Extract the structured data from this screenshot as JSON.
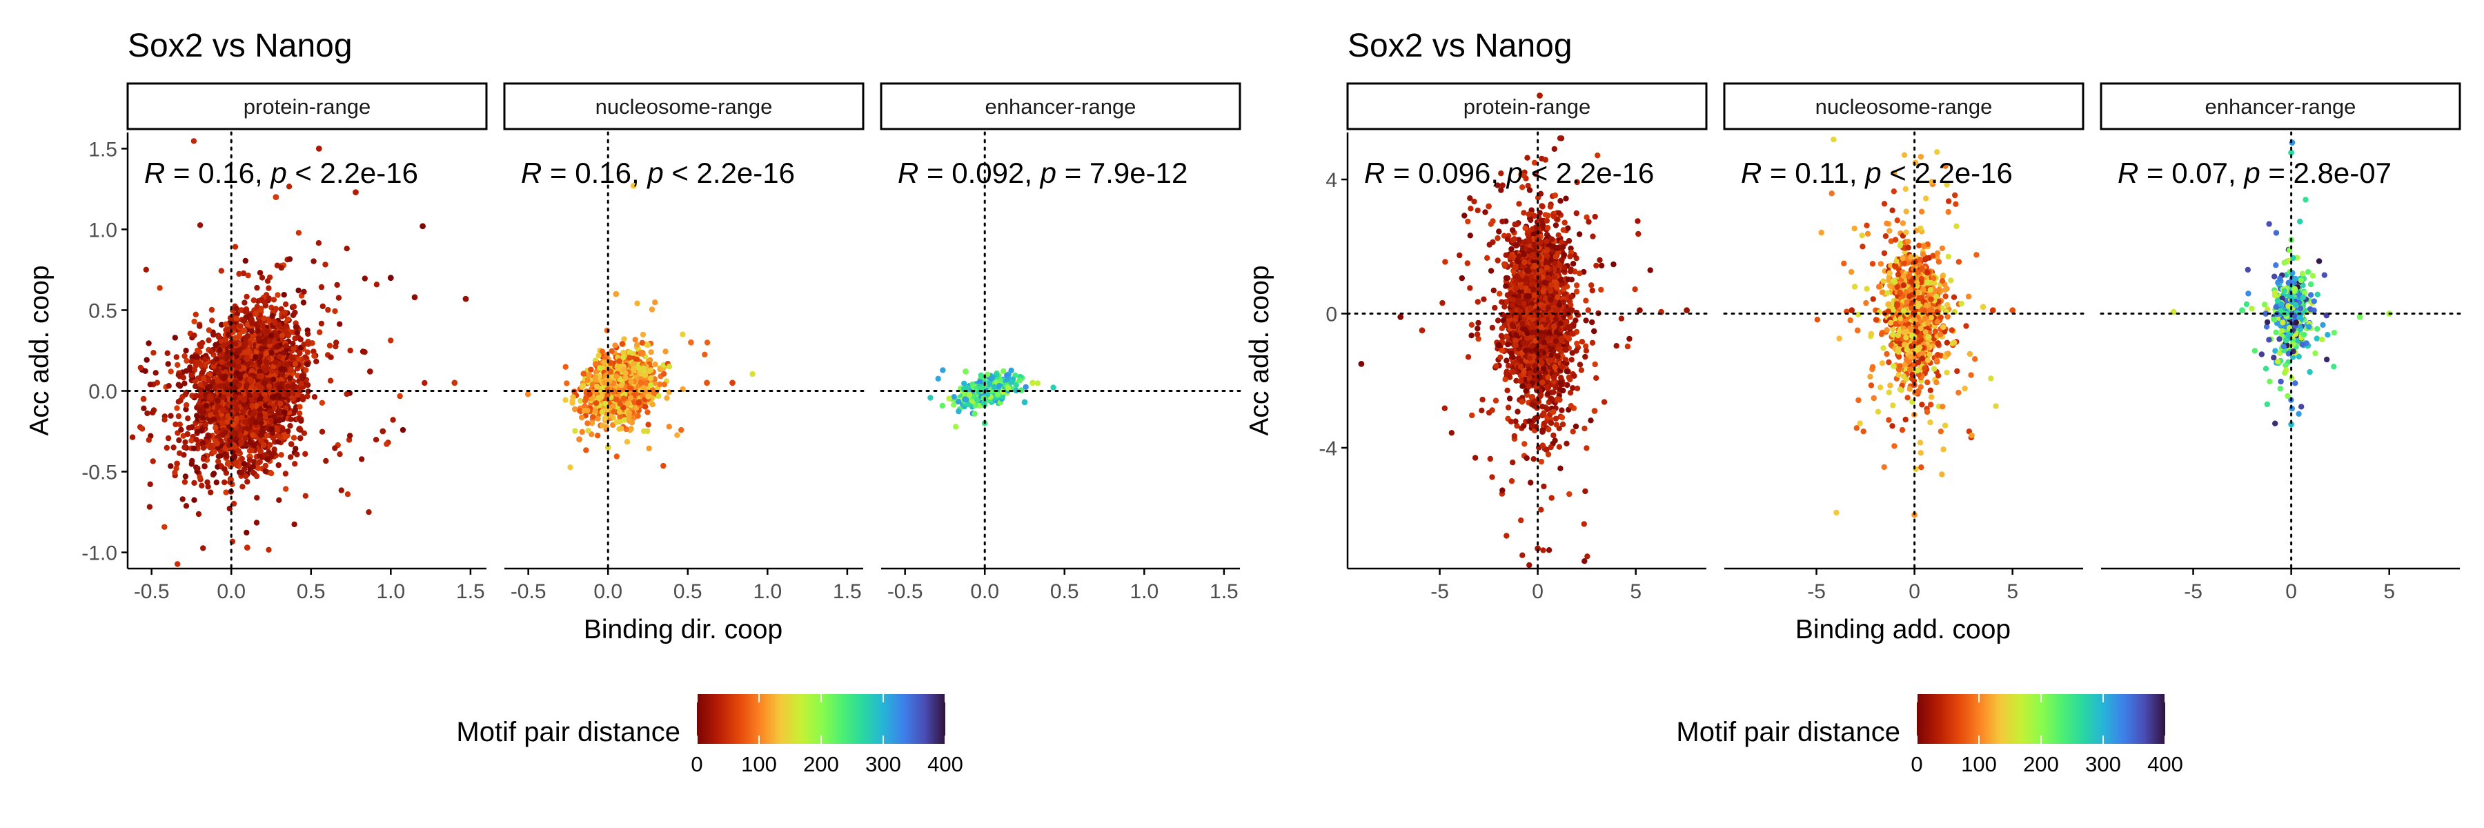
{
  "colors": {
    "scale_stops": [
      "#7a0403",
      "#b51c03",
      "#e4460a",
      "#fb8022",
      "#f6c63a",
      "#c9ef34",
      "#8cfb4b",
      "#4ef071",
      "#2ad8a0",
      "#27b4d8",
      "#3e7fe9",
      "#4a4db5",
      "#30123b"
    ],
    "axis": "#000000",
    "text": "#000000",
    "tick_text": "#4d4d4d"
  },
  "chart_data": [
    {
      "type": "scatter",
      "title": "Sox2 vs Nanog",
      "xlabel": "Binding dir. coop",
      "ylabel": "Acc add. coop",
      "xlim": [
        -0.65,
        1.6
      ],
      "ylim": [
        -1.1,
        1.6
      ],
      "xticks": [
        -0.5,
        0.0,
        0.5,
        1.0,
        1.5
      ],
      "xtick_labels": [
        "-0.5",
        "0.0",
        "0.5",
        "1.0",
        "1.5"
      ],
      "yticks": [
        -1.0,
        -0.5,
        0.0,
        0.5,
        1.0,
        1.5
      ],
      "ytick_labels": [
        "-1.0",
        "-0.5",
        "0.0",
        "0.5",
        "1.0",
        "1.5"
      ],
      "reference_lines": {
        "x": 0,
        "y": 0,
        "style": "dotted"
      },
      "grid": false,
      "legend": {
        "title": "Motif pair distance",
        "position": "bottom",
        "range": [
          0,
          400
        ],
        "tick_labels": [
          "0",
          "100",
          "200",
          "300",
          "400"
        ],
        "tick_values": [
          0,
          100,
          200,
          300,
          400
        ]
      },
      "panels": [
        {
          "strip_label": "protein-range",
          "annotation": {
            "R": "0.16",
            "op": "<",
            "p": "2.2e-16"
          },
          "cloud": {
            "n": 2800,
            "cx": 0.1,
            "cy": 0.02,
            "sx": 0.17,
            "sy": 0.22,
            "tail": 0.06,
            "dist_range": [
              0,
              60
            ]
          },
          "outliers": [
            [
              1.0,
              0.7
            ],
            [
              1.2,
              1.02
            ],
            [
              1.15,
              0.58
            ],
            [
              1.47,
              0.57
            ],
            [
              0.87,
              0.12
            ],
            [
              0.95,
              -0.25
            ],
            [
              0.55,
              1.5
            ],
            [
              0.78,
              1.23
            ],
            [
              -0.34,
              -0.45
            ],
            [
              -0.55,
              -0.05
            ],
            [
              0.1,
              -0.97
            ],
            [
              1.4,
              0.05
            ],
            [
              0.28,
              1.2
            ]
          ]
        },
        {
          "strip_label": "nucleosome-range",
          "annotation": {
            "R": "0.16",
            "op": "<",
            "p": "2.2e-16"
          },
          "cloud": {
            "n": 1100,
            "cx": 0.08,
            "cy": 0.02,
            "sx": 0.11,
            "sy": 0.1,
            "tail": 0.04,
            "dist_range": [
              60,
              160
            ]
          },
          "outliers": [
            [
              0.78,
              0.05
            ],
            [
              0.62,
              0.05
            ],
            [
              0.52,
              0.3
            ],
            [
              -0.18,
              -0.3
            ],
            [
              0.05,
              0.6
            ],
            [
              0.16,
              1.27
            ],
            [
              0.0,
              -0.35
            ]
          ]
        },
        {
          "strip_label": "enhancer-range",
          "annotation": {
            "R": "0.092",
            "op": "=",
            "p": "7.9e-12"
          },
          "cloud": {
            "n": 500,
            "cx": 0.02,
            "cy": 0.0,
            "sx": 0.08,
            "sy": 0.04,
            "tail": 0.03,
            "dist_range": [
              170,
              330
            ]
          },
          "outliers": [
            [
              0.3,
              0.05
            ],
            [
              -0.12,
              0.12
            ],
            [
              0.0,
              -0.2
            ],
            [
              0.25,
              -0.07
            ]
          ]
        }
      ]
    },
    {
      "type": "scatter",
      "title": "Sox2 vs Nanog",
      "xlabel": "Binding add. coop",
      "ylabel": "Acc add. coop",
      "xlim": [
        -9.7,
        8.6
      ],
      "ylim": [
        -7.6,
        5.4
      ],
      "xticks": [
        -5,
        0,
        5
      ],
      "xtick_labels": [
        "-5",
        "0",
        "5"
      ],
      "yticks": [
        -4,
        0,
        4
      ],
      "ytick_labels": [
        "-4",
        "0",
        "4"
      ],
      "reference_lines": {
        "x": 0,
        "y": 0,
        "style": "dotted"
      },
      "grid": false,
      "legend": {
        "title": "Motif pair distance",
        "position": "bottom",
        "range": [
          0,
          400
        ],
        "tick_labels": [
          "0",
          "100",
          "200",
          "300",
          "400"
        ],
        "tick_values": [
          0,
          100,
          200,
          300,
          400
        ]
      },
      "panels": [
        {
          "strip_label": "protein-range",
          "annotation": {
            "R": "0.096",
            "op": "<",
            "p": "2.2e-16"
          },
          "cloud": {
            "n": 2800,
            "cx": 0.0,
            "cy": 0.0,
            "sx": 0.75,
            "sy": 1.2,
            "tail": 0.12,
            "dist_range": [
              0,
              60
            ]
          },
          "outliers": [
            [
              -9.0,
              -1.5
            ],
            [
              -7.0,
              -0.1
            ],
            [
              5.2,
              0.1
            ],
            [
              7.6,
              0.1
            ],
            [
              0.0,
              -7.0
            ],
            [
              0.1,
              6.5
            ],
            [
              -5.9,
              -0.5
            ],
            [
              6.3,
              0.05
            ],
            [
              -2.5,
              3.2
            ],
            [
              2.9,
              -2.9
            ]
          ]
        },
        {
          "strip_label": "nucleosome-range",
          "annotation": {
            "R": "0.11",
            "op": "<",
            "p": "2.2e-16"
          },
          "cloud": {
            "n": 1200,
            "cx": 0.0,
            "cy": 0.0,
            "sx": 0.7,
            "sy": 0.9,
            "tail": 0.14,
            "dist_range": [
              40,
              160
            ]
          },
          "outliers": [
            [
              -3.2,
              0.1
            ],
            [
              4.0,
              0.1
            ],
            [
              5.0,
              0.1
            ],
            [
              -2.9,
              -0.5
            ],
            [
              0.0,
              -6.0
            ],
            [
              0.05,
              4.5
            ],
            [
              3.5,
              0.2
            ]
          ]
        },
        {
          "strip_label": "enhancer-range",
          "annotation": {
            "R": "0.07",
            "op": "=",
            "p": "2.8e-07"
          },
          "cloud": {
            "n": 600,
            "cx": 0.0,
            "cy": 0.0,
            "sx": 0.35,
            "sy": 0.5,
            "tail": 0.2,
            "dist_range": [
              160,
              400
            ]
          },
          "outliers": [
            [
              -6.0,
              0.05
            ],
            [
              5.0,
              0.0
            ],
            [
              3.5,
              -0.1
            ],
            [
              -2.5,
              0.1
            ],
            [
              0.0,
              4.8
            ],
            [
              0.0,
              -3.3
            ],
            [
              0.05,
              5.1
            ],
            [
              -1.3,
              0.0
            ],
            [
              1.8,
              -0.05
            ]
          ]
        }
      ]
    }
  ]
}
